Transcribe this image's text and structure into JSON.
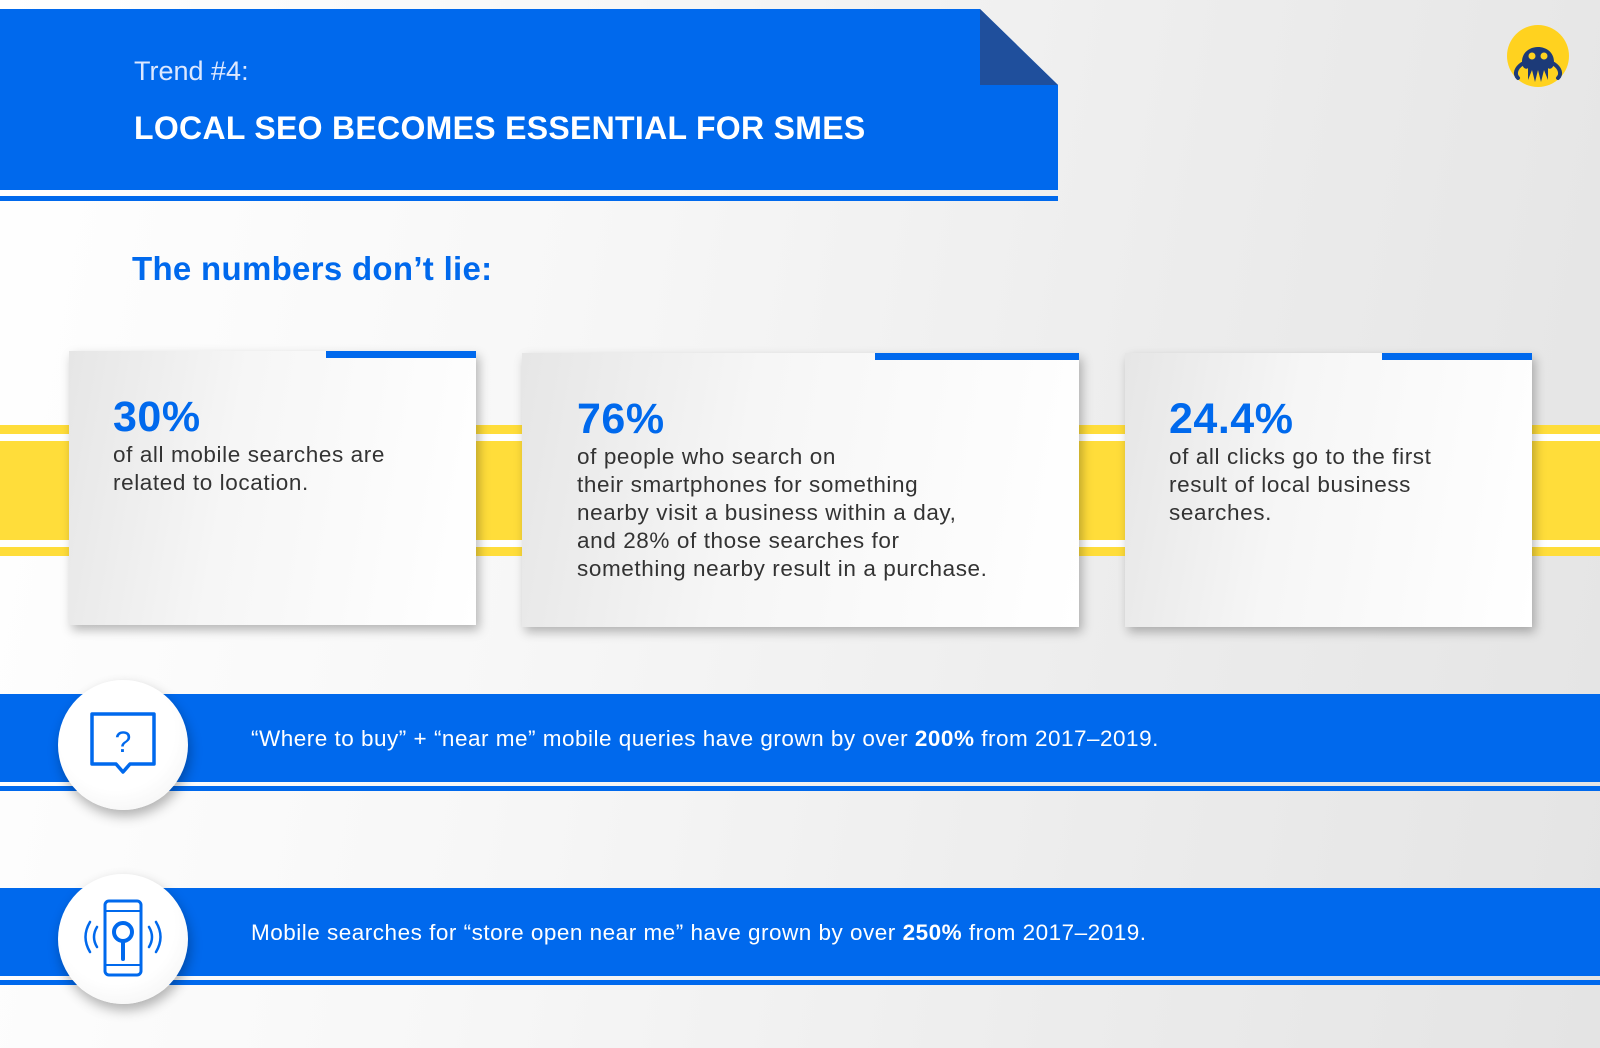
{
  "header": {
    "trend_label": "Trend #4:",
    "title": "LOCAL SEO BECOMES ESSENTIAL FOR SMES"
  },
  "logo": {
    "icon": "octopus-logo-icon"
  },
  "numbers_heading": "The numbers don’t lie:",
  "stats": [
    {
      "value": "30%",
      "description": "of all mobile searches are\nrelated to location."
    },
    {
      "value": "76%",
      "description": "of people who search on\ntheir smartphones for something\nnearby visit a business within a day,\nand 28% of those searches for\nsomething nearby result in a purchase."
    },
    {
      "value": "24.4%",
      "description": "of all clicks go to the first\nresult of local business\nsearches."
    }
  ],
  "facts": [
    {
      "icon": "question-bubble-icon",
      "text_before": "“Where to buy” + “near me” mobile queries have grown by over ",
      "highlight": "200%",
      "text_after": " from 2017–2019."
    },
    {
      "icon": "phone-search-icon",
      "text_before": "Mobile searches for “store open near me” have grown by over ",
      "highlight": "250%",
      "text_after": " from 2017–2019."
    }
  ],
  "colors": {
    "primary_blue": "#0069ed",
    "accent_yellow": "#ffdd3a",
    "fold_blue": "#1f4f9c"
  }
}
